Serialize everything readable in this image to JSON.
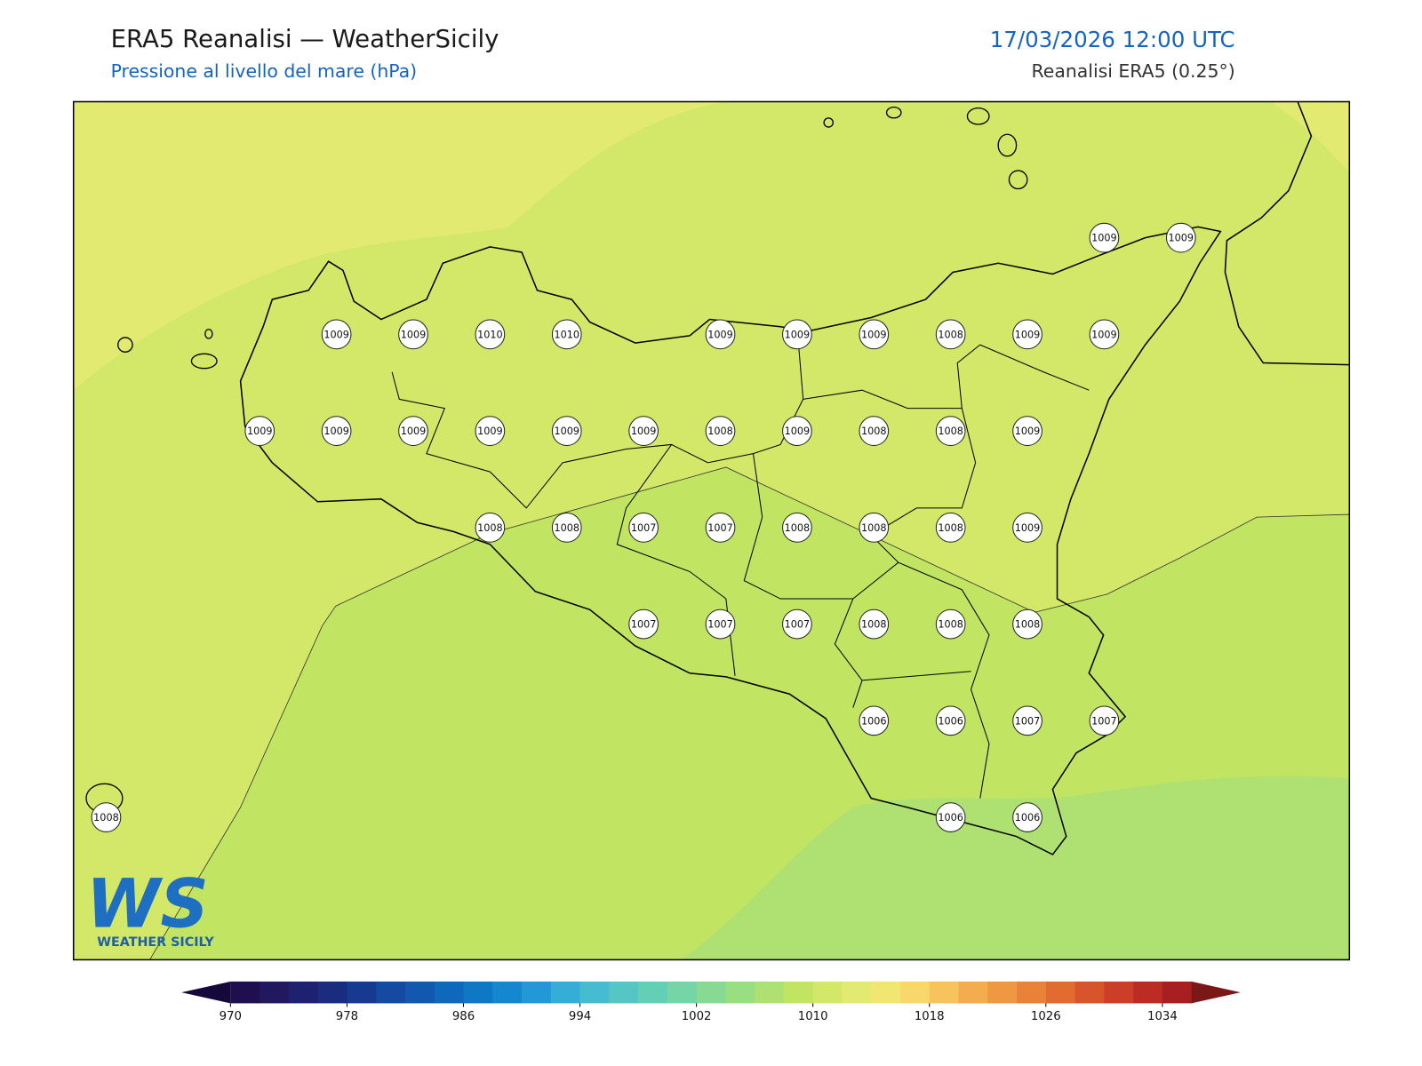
{
  "header": {
    "title": "ERA5 Reanalisi — WeatherSicily",
    "subtitle": "Pressione al livello del mare (hPa)",
    "datetime": "17/03/2026 12:00 UTC",
    "source": "Reanalisi ERA5 (0.25°)"
  },
  "stations": [
    1009,
    1009,
    1009,
    1009,
    1010,
    1010,
    1009,
    1009,
    1009,
    1008,
    1009,
    1009,
    1009,
    1009,
    1009,
    1009,
    1009,
    1009,
    1008,
    1009,
    1008,
    1008,
    1009,
    1008,
    1008,
    1007,
    1007,
    1008,
    1008,
    1008,
    1009,
    1007,
    1007,
    1007,
    1008,
    1008,
    1008,
    1006,
    1006,
    1007,
    1007,
    1008,
    1006,
    1006
  ],
  "colorbar": {
    "lim": [
      970,
      1036
    ],
    "ticks": [
      970,
      978,
      986,
      994,
      1002,
      1010,
      1018,
      1026,
      1034
    ],
    "colors": [
      "#1f0f4f",
      "#21185f",
      "#1e2170",
      "#1a2c80",
      "#173a90",
      "#144aa0",
      "#1158ae",
      "#0f68bb",
      "#0e78c6",
      "#1488cf",
      "#2298d6",
      "#34aed6",
      "#45bcd0",
      "#55c6c4",
      "#64cfb5",
      "#74d5a6",
      "#86da94",
      "#9ade82",
      "#aee171",
      "#c1e563",
      "#d3e868",
      "#e3ea72",
      "#f1e672",
      "#f8d86a",
      "#f6c35c",
      "#f3ad4f",
      "#ef9844",
      "#e98239",
      "#e26b31",
      "#d8542b",
      "#cd3e28",
      "#bd2b25",
      "#a81f22"
    ],
    "under": "#14093a",
    "over": "#7a1818"
  },
  "logo": {
    "mark": "WS",
    "text": "WEATHER SICILY"
  }
}
